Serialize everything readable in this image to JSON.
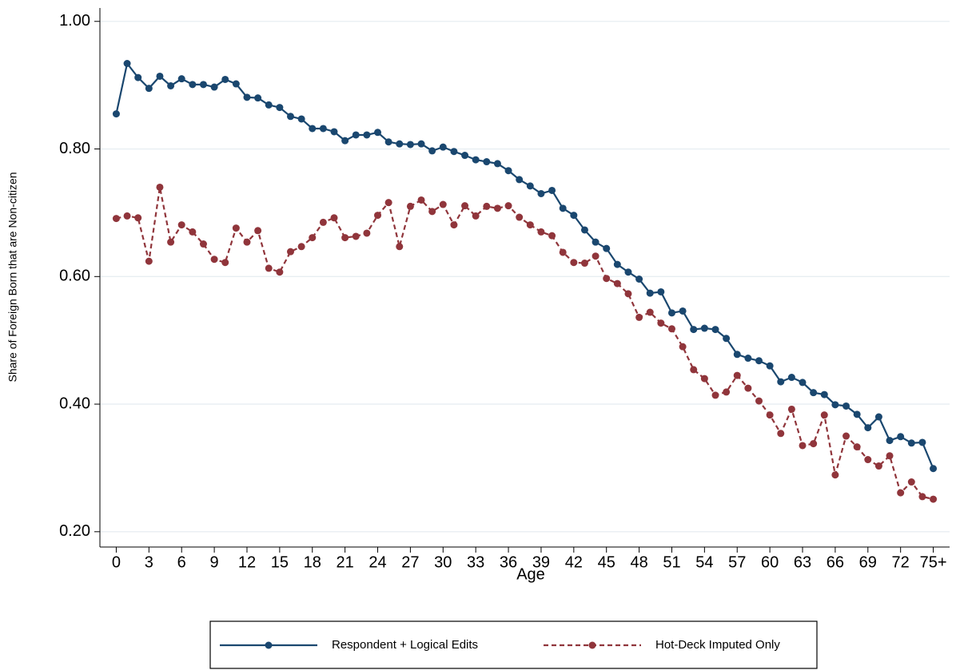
{
  "chart_data": {
    "type": "line",
    "x_label": "Age",
    "y_label": "Share of Foreign Born that are Non-citizen",
    "x": [
      0,
      1,
      2,
      3,
      4,
      5,
      6,
      7,
      8,
      9,
      10,
      11,
      12,
      13,
      14,
      15,
      16,
      17,
      18,
      19,
      20,
      21,
      22,
      23,
      24,
      25,
      26,
      27,
      28,
      29,
      30,
      31,
      32,
      33,
      34,
      35,
      36,
      37,
      38,
      39,
      40,
      41,
      42,
      43,
      44,
      45,
      46,
      47,
      48,
      49,
      50,
      51,
      52,
      53,
      54,
      55,
      56,
      57,
      58,
      59,
      60,
      61,
      62,
      63,
      64,
      65,
      66,
      67,
      68,
      69,
      70,
      71,
      72,
      73,
      74,
      75
    ],
    "series": [
      {
        "name": "Respondent + Logical Edits",
        "color": "#1a476f",
        "dashed": false,
        "values": [
          0.855,
          0.934,
          0.912,
          0.895,
          0.914,
          0.899,
          0.91,
          0.901,
          0.901,
          0.897,
          0.909,
          0.902,
          0.881,
          0.88,
          0.869,
          0.865,
          0.851,
          0.847,
          0.832,
          0.832,
          0.827,
          0.813,
          0.822,
          0.822,
          0.826,
          0.811,
          0.808,
          0.807,
          0.808,
          0.797,
          0.803,
          0.796,
          0.79,
          0.783,
          0.78,
          0.777,
          0.766,
          0.752,
          0.742,
          0.73,
          0.735,
          0.707,
          0.696,
          0.673,
          0.654,
          0.644,
          0.619,
          0.607,
          0.596,
          0.574,
          0.576,
          0.543,
          0.546,
          0.517,
          0.519,
          0.517,
          0.503,
          0.478,
          0.472,
          0.468,
          0.46,
          0.435,
          0.442,
          0.434,
          0.418,
          0.415,
          0.399,
          0.397,
          0.384,
          0.363,
          0.38,
          0.343,
          0.349,
          0.339,
          0.34,
          0.299
        ]
      },
      {
        "name": "Hot-Deck Imputed Only",
        "color": "#90353b",
        "dashed": true,
        "values": [
          0.691,
          0.695,
          0.692,
          0.624,
          0.74,
          0.654,
          0.681,
          0.67,
          0.651,
          0.627,
          0.622,
          0.676,
          0.654,
          0.672,
          0.613,
          0.607,
          0.639,
          0.647,
          0.661,
          0.685,
          0.692,
          0.661,
          0.663,
          0.668,
          0.696,
          0.716,
          0.647,
          0.71,
          0.72,
          0.702,
          0.713,
          0.681,
          0.711,
          0.695,
          0.71,
          0.707,
          0.711,
          0.693,
          0.681,
          0.67,
          0.664,
          0.638,
          0.622,
          0.621,
          0.632,
          0.597,
          0.589,
          0.573,
          0.536,
          0.544,
          0.527,
          0.518,
          0.49,
          0.454,
          0.44,
          0.414,
          0.419,
          0.445,
          0.425,
          0.405,
          0.383,
          0.354,
          0.392,
          0.335,
          0.338,
          0.383,
          0.289,
          0.35,
          0.333,
          0.313,
          0.303,
          0.319,
          0.261,
          0.278,
          0.255,
          0.251
        ]
      }
    ],
    "xlim": [
      -1.5,
      76.5
    ],
    "xticks": [
      0,
      3,
      6,
      9,
      12,
      15,
      18,
      21,
      24,
      27,
      30,
      33,
      36,
      39,
      42,
      45,
      48,
      51,
      54,
      57,
      60,
      63,
      66,
      69,
      72,
      {
        "value": 75,
        "label": "75+"
      }
    ],
    "ylim": [
      0.176,
      1.021
    ],
    "yticks": [
      {
        "value": 0.2,
        "label": "0.20"
      },
      {
        "value": 0.4,
        "label": "0.40"
      },
      {
        "value": 0.6,
        "label": "0.60"
      },
      {
        "value": 0.8,
        "label": "0.80"
      },
      {
        "value": 1.0,
        "label": "1.00"
      }
    ],
    "grid": true
  }
}
